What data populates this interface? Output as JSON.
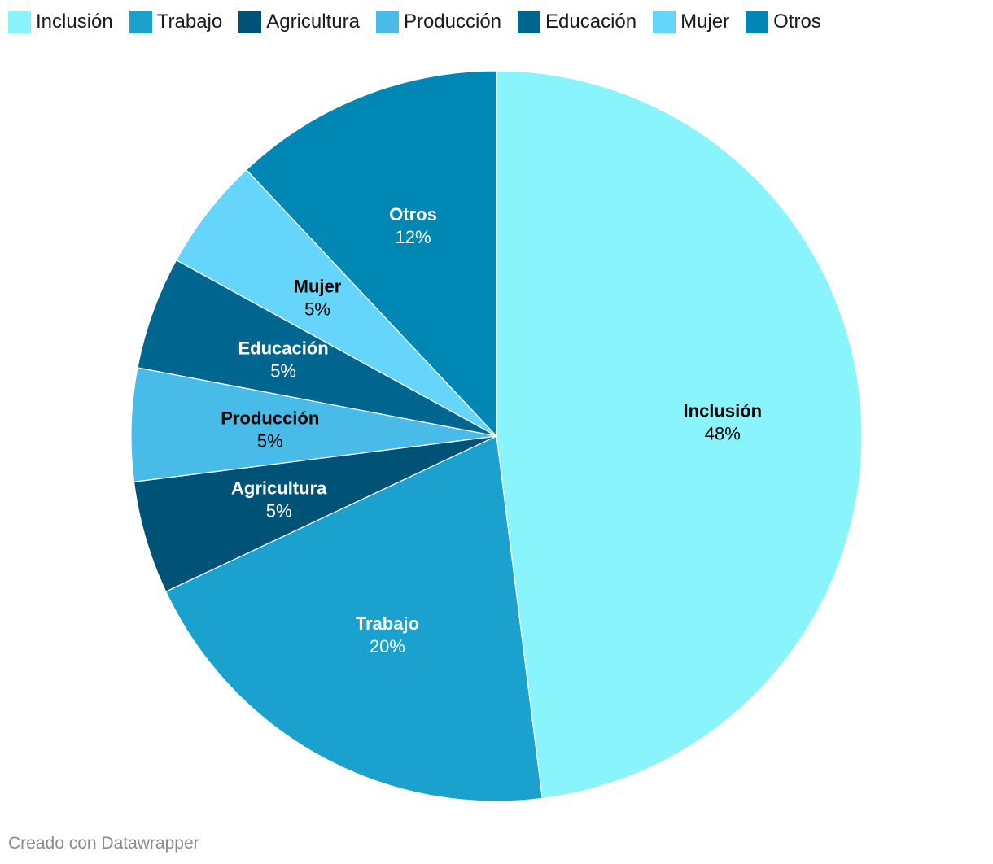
{
  "chart_data": {
    "type": "pie",
    "title": "",
    "legend_position": "top-left",
    "slices": [
      {
        "label": "Inclusión",
        "value": 48,
        "display": "48%",
        "color": "#8af4fd",
        "text_color": "#000000"
      },
      {
        "label": "Trabajo",
        "value": 20,
        "display": "20%",
        "color": "#1aa1cd",
        "text_color": "#ffffff"
      },
      {
        "label": "Agricultura",
        "value": 5,
        "display": "5%",
        "color": "#015277",
        "text_color": "#ffffff"
      },
      {
        "label": "Producción",
        "value": 5,
        "display": "5%",
        "color": "#48bbe8",
        "text_color": "#000000"
      },
      {
        "label": "Educación",
        "value": 5,
        "display": "5%",
        "color": "#00668f",
        "text_color": "#ffffff"
      },
      {
        "label": "Mujer",
        "value": 5,
        "display": "5%",
        "color": "#66d5fb",
        "text_color": "#000000"
      },
      {
        "label": "Otros",
        "value": 12,
        "display": "12%",
        "color": "#0087b3",
        "text_color": "#ffffff"
      }
    ]
  },
  "footer": {
    "credit": "Creado con Datawrapper"
  }
}
